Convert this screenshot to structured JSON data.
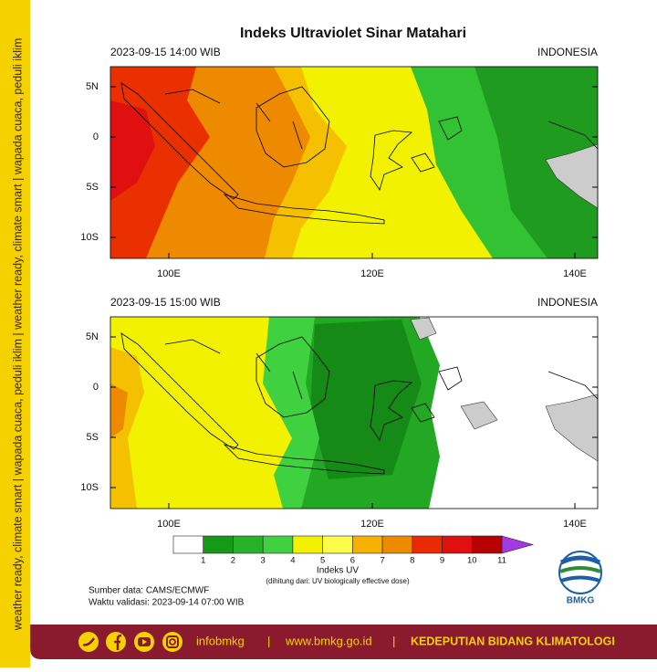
{
  "title": "Indeks Ultraviolet Sinar Matahari",
  "panels": [
    {
      "time": "2023-09-15  14:00 WIB",
      "region": "INDONESIA"
    },
    {
      "time": "2023-09-15  15:00 WIB",
      "region": "INDONESIA"
    }
  ],
  "lat_ticks": [
    "5N",
    "0",
    "5S",
    "10S"
  ],
  "lon_ticks": [
    "100E",
    "120E",
    "140E"
  ],
  "colorbar": {
    "labels": [
      "1",
      "2",
      "3",
      "4",
      "5",
      "6",
      "7",
      "8",
      "9",
      "10",
      "11"
    ],
    "colors": [
      "#ffffff",
      "#159a15",
      "#27b327",
      "#3fd13f",
      "#f2f200",
      "#fbfb4a",
      "#f5b000",
      "#ee8a00",
      "#ea2a00",
      "#e01010",
      "#b80000"
    ],
    "extend_color": "#a23ae0",
    "title": "Indeks UV",
    "note": "(dihitung dari: UV biologically effective dose)"
  },
  "source": "Sumber data: CAMS/ECMWF",
  "validity": "Waktu validasi: 2023-09-14 07:00 WIB",
  "logo": "BMKG",
  "side_text": "weather ready, climate smart  |  wapada cuaca, peduli iklim  |  weather ready, climate smart  |  wapada cuaca, peduli iklim",
  "footer": {
    "handle": "infobmkg",
    "separator": "|",
    "website": "www.bmkg.go.id",
    "unit": "KEDEPUTIAN BIDANG KLIMATOLOGI"
  }
}
